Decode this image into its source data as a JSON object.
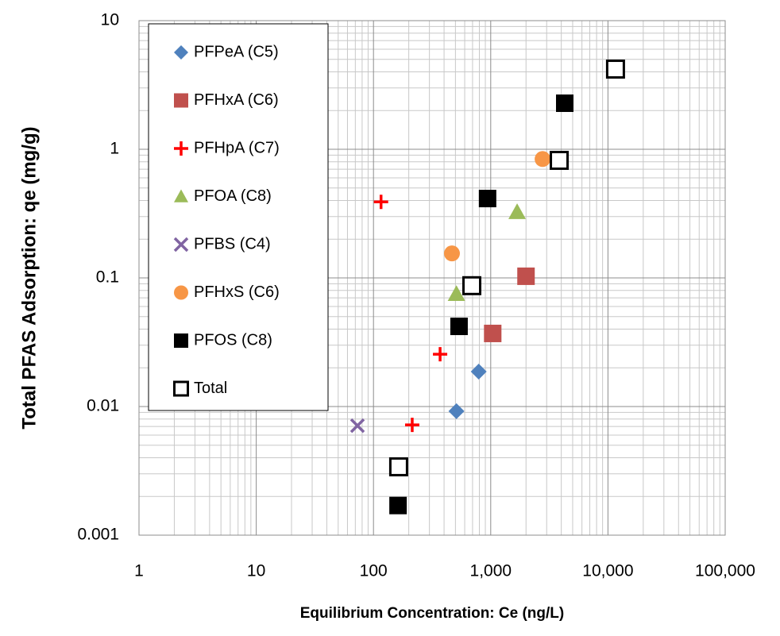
{
  "chart_data": {
    "type": "scatter",
    "x_label": "Equilibrium Concentration: Ce (ng/L)",
    "y_label": "Total PFAS Adsorption: qe (mg/g)",
    "xscale": "log",
    "yscale": "log",
    "grid": true,
    "minor_grid": true,
    "legend": "upper left",
    "xlim": [
      1,
      100000
    ],
    "xticks": [
      1,
      10,
      100,
      {
        "value": 1000,
        "label": "1,000"
      },
      {
        "value": 10000,
        "label": "10,000"
      },
      {
        "value": 100000,
        "label": "100,000"
      }
    ],
    "ylim": [
      0.001,
      10
    ],
    "yticks": [
      0.001,
      0.01,
      0.1,
      1,
      10
    ],
    "series": [
      {
        "name": "PFPeA (C5)",
        "color": "#4f81bd",
        "marker": "diamond",
        "x": [
          790,
          510
        ],
        "values": [
          0.0187,
          0.0092
        ]
      },
      {
        "name": "PFHxA (C6)",
        "color": "#c0504d",
        "marker": "square",
        "x": [
          2000,
          1040
        ],
        "values": [
          0.103,
          0.037
        ]
      },
      {
        "name": "PFHpA (C7)",
        "color": "#ff0000",
        "marker": "plus",
        "x": [
          116,
          370,
          214
        ],
        "values": [
          0.39,
          0.0255,
          0.0072
        ]
      },
      {
        "name": "PFOA (C8)",
        "color": "#9bbb59",
        "marker": "triangle",
        "x": [
          1680,
          510
        ],
        "values": [
          0.325,
          0.075
        ]
      },
      {
        "name": "PFBS (C4)",
        "color": "#8064a2",
        "marker": "x",
        "x": [
          73
        ],
        "values": [
          0.0071
        ]
      },
      {
        "name": "PFHxS (C6)",
        "color": "#f79646",
        "marker": "circle",
        "x": [
          2770,
          467
        ],
        "values": [
          0.84,
          0.155
        ]
      },
      {
        "name": "PFOS (C8)",
        "color": "#000000",
        "marker": "square",
        "x": [
          4280,
          940,
          537,
          162
        ],
        "values": [
          2.28,
          0.414,
          0.042,
          0.0017
        ]
      },
      {
        "name": "Total",
        "color": "#000000",
        "marker": "open-square",
        "x": [
          11600,
          3840,
          690,
          164
        ],
        "values": [
          4.2,
          0.82,
          0.087,
          0.0034
        ]
      }
    ]
  }
}
